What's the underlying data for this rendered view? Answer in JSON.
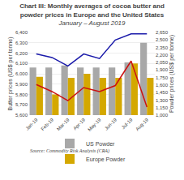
{
  "chart_data": {
    "type": "bar",
    "title": "Chart III: Monthly averages of cocoa butter and powder prices in Europe and the United States",
    "subtitle": "January – August 2019",
    "source": "Source: Commodity Risk Analysis (CRA)",
    "ylabel": "Butter prices (US$ per tonne)",
    "y2label": "Powder prices (US$ per tonne)",
    "categories": [
      "Jan-19",
      "Feb-19",
      "Mar-19",
      "Apr-19",
      "May-19",
      "Jun-19",
      "Jul-19",
      "Aug-19"
    ],
    "series": [
      {
        "name": "US Powder",
        "type": "bar",
        "color": "#a8a8a8",
        "values": [
          6060,
          6060,
          6080,
          6060,
          6060,
          6060,
          6110,
          6300
        ]
      },
      {
        "name": "Europe Powder",
        "type": "bar",
        "color": "#d4a800",
        "values": [
          5970,
          5800,
          5960,
          6000,
          5960,
          5960,
          6100,
          5960
        ]
      },
      {
        "type": "line",
        "axis": "y2",
        "color": "#1a1aaa",
        "values": [
          2220,
          2150,
          1980,
          2220,
          2130,
          2500,
          2620,
          2620
        ]
      },
      {
        "type": "line",
        "axis": "y2",
        "color": "#cc1111",
        "values": [
          1610,
          1470,
          1290,
          1550,
          1470,
          1590,
          2080,
          1160
        ]
      }
    ],
    "ylim": [
      5600,
      6400
    ],
    "yticks": [
      {
        "value": 5600,
        "label": "5,600"
      },
      {
        "value": 5700,
        "label": "5,700"
      },
      {
        "value": 5800,
        "label": "5,800"
      },
      {
        "value": 5900,
        "label": "5,900"
      },
      {
        "value": 6000,
        "label": "6,000"
      },
      {
        "value": 6100,
        "label": "6,100"
      },
      {
        "value": 6200,
        "label": "6,200"
      },
      {
        "value": 6300,
        "label": "6,300"
      },
      {
        "value": 6400,
        "label": "6,400"
      }
    ],
    "y2lim": [
      1000,
      2650
    ],
    "y2ticks": [
      {
        "value": 1000,
        "label": "1,000"
      },
      {
        "value": 1150,
        "label": "1,150"
      },
      {
        "value": 1300,
        "label": "1,300"
      },
      {
        "value": 1450,
        "label": "1,450"
      },
      {
        "value": 1600,
        "label": "1,600"
      },
      {
        "value": 1750,
        "label": "1,750"
      },
      {
        "value": 1900,
        "label": "1,900"
      },
      {
        "value": 2050,
        "label": "2,050"
      },
      {
        "value": 2200,
        "label": "2,200"
      },
      {
        "value": 2350,
        "label": "2,350"
      },
      {
        "value": 2500,
        "label": "2,500"
      },
      {
        "value": 2650,
        "label": "2,650"
      }
    ],
    "grid": true,
    "legend": "bottom"
  }
}
